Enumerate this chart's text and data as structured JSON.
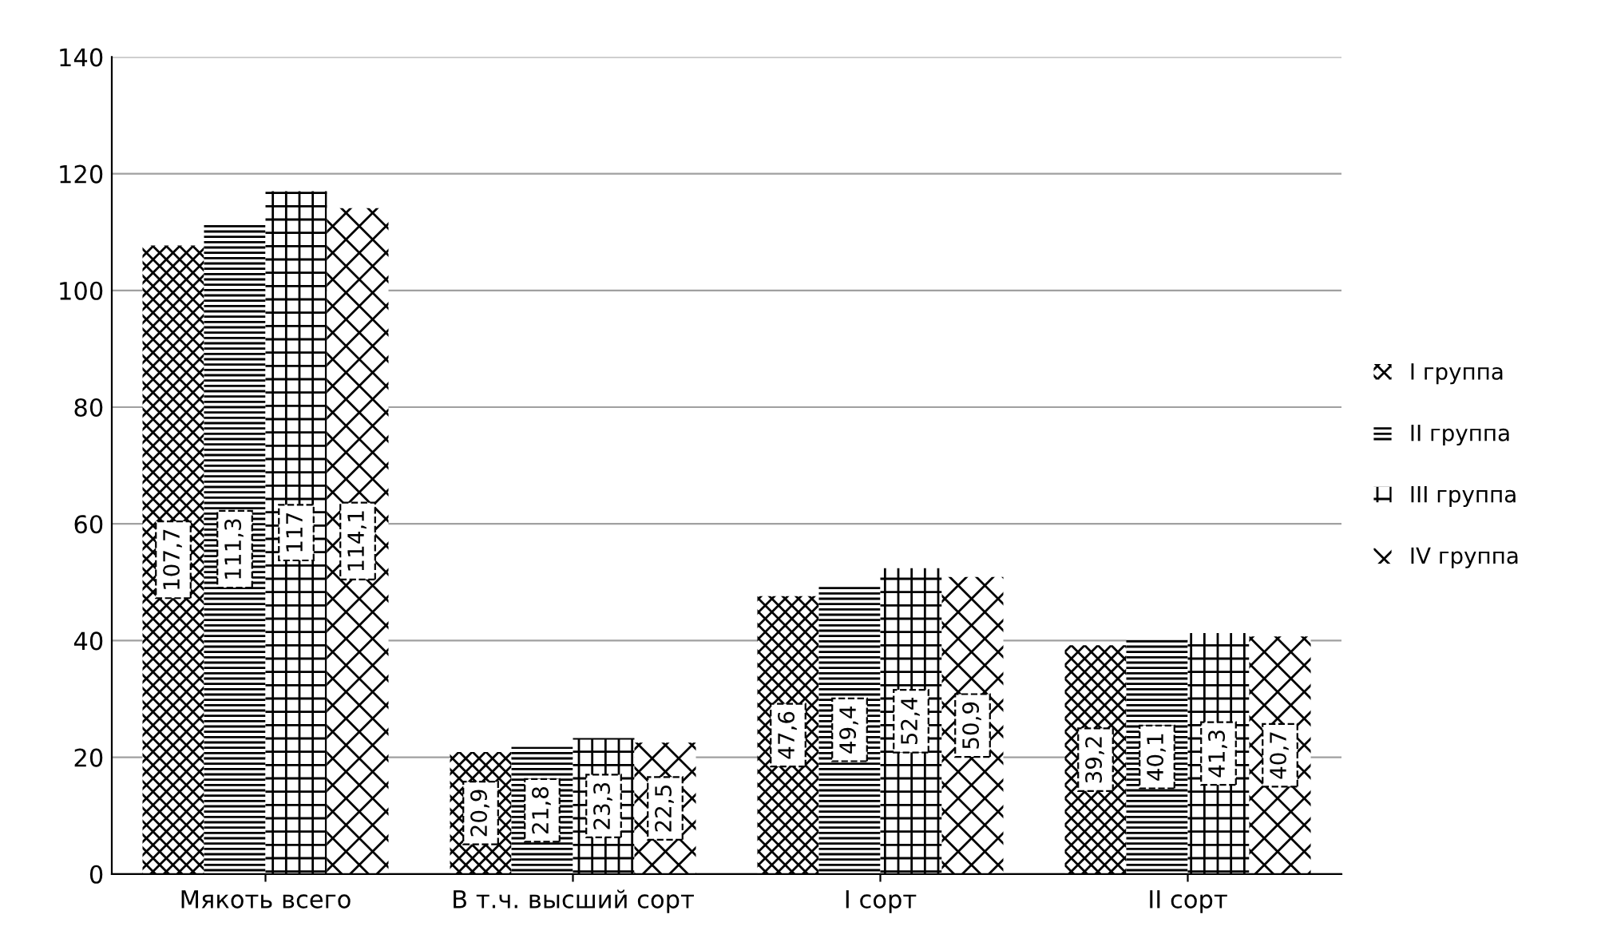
{
  "chart_data": {
    "type": "bar",
    "categories": [
      "Мякоть всего",
      "В т.ч. высший сорт",
      "I сорт",
      "II сорт"
    ],
    "series": [
      {
        "name": "I группа",
        "color": "#000000",
        "values": [
          107.7,
          20.9,
          47.6,
          39.2
        ],
        "value_labels": [
          "107,7",
          "20,9",
          "47,6",
          "39,2"
        ]
      },
      {
        "name": "II группа",
        "color": "#000000",
        "values": [
          111.3,
          21.8,
          49.4,
          40.1
        ],
        "value_labels": [
          "111,3",
          "21,8",
          "49,4",
          "40,1"
        ]
      },
      {
        "name": "III группа",
        "color": "#000000",
        "values": [
          117,
          23.3,
          52.4,
          41.3
        ],
        "value_labels": [
          "117",
          "23,3",
          "52,4",
          "41,3"
        ]
      },
      {
        "name": "IV группа",
        "color": "#000000",
        "values": [
          114.1,
          22.5,
          50.9,
          40.7
        ],
        "value_labels": [
          "114,1",
          "22,5",
          "50,9",
          "40,7"
        ]
      }
    ],
    "ylim": [
      0,
      140
    ],
    "yticks": [
      0,
      20,
      40,
      60,
      80,
      100,
      120,
      140
    ],
    "grid": "y",
    "legend": "right"
  }
}
